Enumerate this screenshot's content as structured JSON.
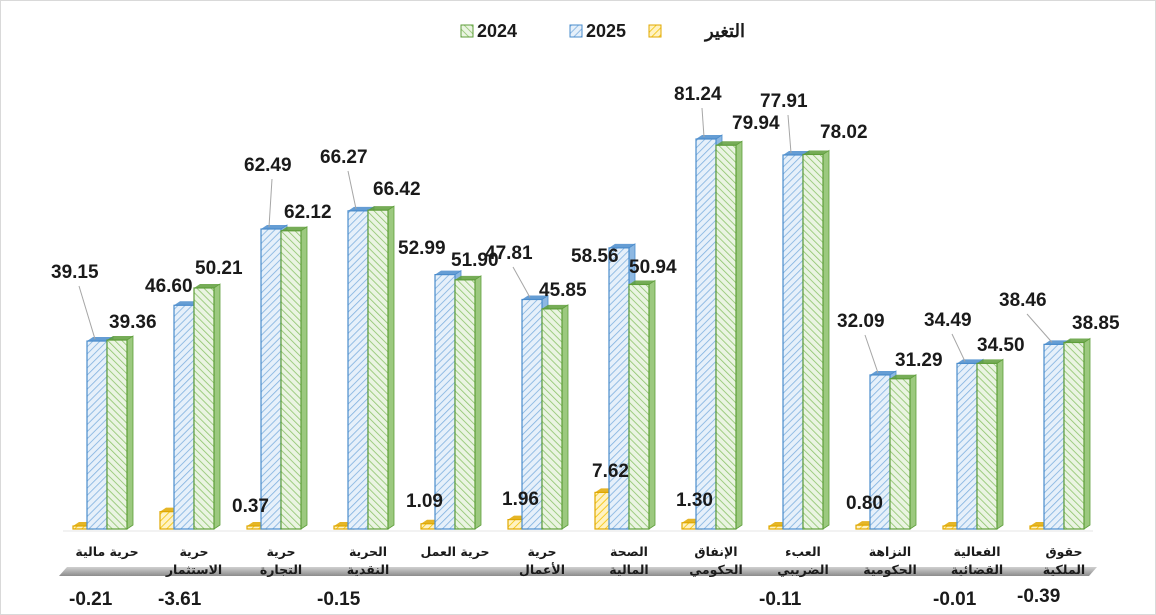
{
  "chart_data": {
    "type": "bar",
    "title": "",
    "xlabel": "",
    "ylabel": "",
    "ylim": [
      -5,
      85
    ],
    "grid": false,
    "legend_position": "top-center",
    "categories": [
      [
        "حرية مالية"
      ],
      [
        "حرية",
        "الاستثمار"
      ],
      [
        "حرية",
        "التجارة"
      ],
      [
        "الحرية",
        "النقدية"
      ],
      [
        "حرية العمل"
      ],
      [
        "حرية",
        "الأعمال"
      ],
      [
        "الصحة",
        "المالية"
      ],
      [
        "الإنفاق",
        "الحكومي"
      ],
      [
        "العبء",
        "الضريبي"
      ],
      [
        "النزاهة",
        "الحكومية"
      ],
      [
        "الفعالية",
        "القضائية"
      ],
      [
        "حقوق",
        "الملكية"
      ]
    ],
    "series": [
      {
        "name": "التغير",
        "color": "#f5c518",
        "values": [
          -0.21,
          -3.61,
          0.37,
          -0.15,
          1.09,
          1.96,
          7.62,
          1.3,
          -0.11,
          0.8,
          -0.01,
          -0.39
        ],
        "labels": [
          "-0.21",
          "-3.61",
          "0.37",
          "-0.15",
          "1.09",
          "1.96",
          "7.62",
          "1.30",
          "-0.11",
          "0.80",
          "-0.01",
          "-0.39"
        ]
      },
      {
        "name": "2025",
        "color": "#5b9bd5",
        "values": [
          39.15,
          46.6,
          62.49,
          66.27,
          52.99,
          47.81,
          58.56,
          81.24,
          77.91,
          32.09,
          34.49,
          38.46
        ],
        "labels": [
          "39.15",
          "46.60",
          "62.49",
          "66.27",
          "52.99",
          "47.81",
          "58.56",
          "81.24",
          "77.91",
          "32.09",
          "34.49",
          "38.46"
        ]
      },
      {
        "name": "2024",
        "color": "#70ad47",
        "values": [
          39.36,
          50.21,
          62.12,
          66.42,
          51.9,
          45.85,
          50.94,
          79.94,
          78.02,
          31.29,
          34.5,
          38.85
        ],
        "labels": [
          "39.36",
          "50.21",
          "62.12",
          "66.42",
          "51.90",
          "45.85",
          "50.94",
          "79.94",
          "78.02",
          "31.29",
          "34.50",
          "38.85"
        ]
      }
    ]
  }
}
